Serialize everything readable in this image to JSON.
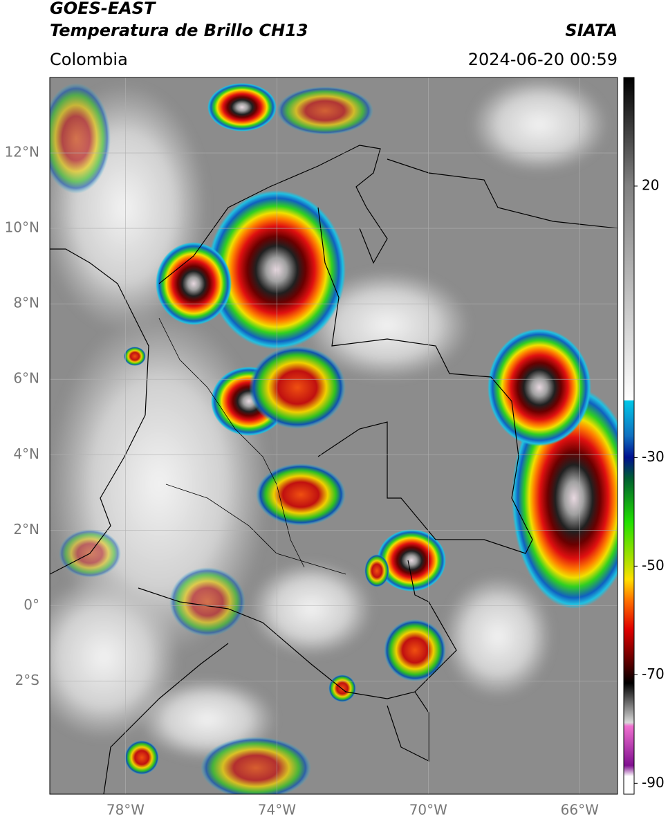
{
  "map": {
    "title_line1": "GOES-EAST",
    "title_line2": "Temperatura de Brillo CH13",
    "source": "SIATA",
    "region": "Colombia",
    "timestamp": "2024-06-20 00:59",
    "lon_lim": [
      -80,
      -65
    ],
    "lat_lim": [
      -5,
      14
    ],
    "lon_ticks": [
      {
        "value": -78,
        "label": "78°W"
      },
      {
        "value": -74,
        "label": "74°W"
      },
      {
        "value": -70,
        "label": "70°W"
      },
      {
        "value": -66,
        "label": "66°W"
      }
    ],
    "lat_ticks": [
      {
        "value": 12,
        "label": "12°N"
      },
      {
        "value": 10,
        "label": "10°N"
      },
      {
        "value": 8,
        "label": "8°N"
      },
      {
        "value": 6,
        "label": "6°N"
      },
      {
        "value": 4,
        "label": "4°N"
      },
      {
        "value": 2,
        "label": "2°N"
      },
      {
        "value": 0,
        "label": "0°"
      },
      {
        "value": -2,
        "label": "2°S"
      }
    ],
    "colorbar": {
      "lim": [
        -92,
        40
      ],
      "ticks": [
        20,
        -30,
        -50,
        -70,
        -90
      ]
    }
  }
}
